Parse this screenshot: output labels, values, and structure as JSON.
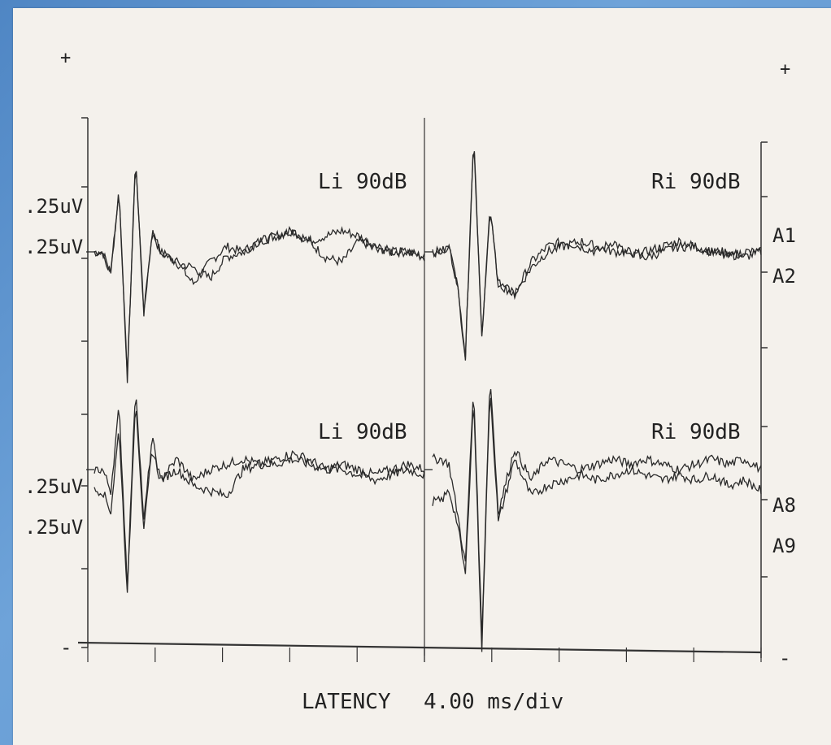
{
  "chart_data": {
    "type": "line",
    "xlabel": "LATENCY",
    "x_scale": "4.00 ms/div",
    "x_divisions_per_panel": 5,
    "left_scale_labels": [
      ".25uV",
      ".25uV",
      ".25uV",
      ".25uV"
    ],
    "right_channel_labels": [
      "A1",
      "A2",
      "A8",
      "A9"
    ],
    "plus_marks": [
      "+",
      "+"
    ],
    "minus_marks": [
      "-",
      "-"
    ],
    "panels": [
      {
        "label": "Li 90dB",
        "position": "top-left",
        "x": [
          0,
          0.5,
          1,
          1.5,
          2,
          2.5,
          3,
          3.5,
          4,
          5,
          6,
          7,
          8,
          9,
          10,
          11,
          12,
          13,
          14,
          15,
          16,
          17,
          18,
          19,
          20
        ],
        "series": [
          {
            "name": "A1",
            "values": [
              0,
              0,
              -0.2,
              0.6,
              -1.2,
              0.9,
              -0.6,
              0.2,
              0,
              -0.1,
              -0.3,
              -0.1,
              0.05,
              0,
              0.1,
              0.15,
              0.2,
              0.1,
              -0.05,
              -0.1,
              0.1,
              0.05,
              0,
              0,
              -0.05
            ]
          },
          {
            "name": "A2",
            "values": [
              0,
              0,
              -0.2,
              0.6,
              -1.2,
              0.9,
              -0.6,
              0.2,
              0,
              -0.1,
              -0.15,
              -0.25,
              -0.05,
              0,
              0.1,
              0.15,
              0.2,
              0.1,
              0.15,
              0.2,
              0.15,
              0.05,
              0,
              0,
              -0.05
            ]
          }
        ]
      },
      {
        "label": "Ri 90dB",
        "position": "top-right",
        "x": [
          0,
          0.5,
          1,
          1.5,
          2,
          2.5,
          3,
          3.5,
          4,
          5,
          6,
          7,
          8,
          9,
          10,
          11,
          12,
          13,
          14,
          15,
          16,
          17,
          18,
          19,
          20
        ],
        "series": [
          {
            "name": "A1",
            "values": [
              0,
              0,
              0.05,
              -0.3,
              -1.0,
              1.1,
              -0.8,
              0.4,
              -0.3,
              -0.4,
              -0.1,
              0.05,
              0.1,
              0.05,
              0,
              0.1,
              -0.05,
              0,
              0.05,
              0.1,
              0.05,
              0,
              0,
              -0.05,
              0
            ]
          },
          {
            "name": "A2",
            "values": [
              0,
              0,
              0.05,
              -0.3,
              -1.0,
              1.1,
              -0.8,
              0.4,
              -0.3,
              -0.4,
              -0.15,
              0,
              0.05,
              0.1,
              0.05,
              0,
              0,
              -0.05,
              0,
              0.05,
              0.05,
              0,
              -0.05,
              0,
              0
            ]
          }
        ]
      },
      {
        "label": "Li 90dB",
        "position": "bottom-left",
        "x": [
          0,
          0.5,
          1,
          1.5,
          2,
          2.5,
          3,
          3.5,
          4,
          5,
          6,
          7,
          8,
          9,
          10,
          11,
          12,
          13,
          14,
          15,
          16,
          17,
          18,
          19,
          20
        ],
        "series": [
          {
            "name": "A8",
            "values": [
              0,
              0,
              -0.2,
              0.6,
              -1.1,
              0.8,
              -0.5,
              0.3,
              -0.1,
              0.1,
              -0.1,
              0,
              0.05,
              0.1,
              0.05,
              0.1,
              0.15,
              0.1,
              0,
              0.05,
              0,
              -0.05,
              0,
              0.05,
              0
            ]
          },
          {
            "name": "A9",
            "values": [
              -0.2,
              -0.2,
              -0.4,
              0.4,
              -1.2,
              0.7,
              -0.6,
              0.2,
              -0.1,
              0,
              -0.15,
              -0.2,
              -0.25,
              0,
              0.05,
              0.05,
              0.1,
              0.05,
              0,
              0,
              -0.05,
              -0.1,
              -0.05,
              0,
              -0.05
            ]
          }
        ]
      },
      {
        "label": "Ri 90dB",
        "position": "bottom-right",
        "x": [
          0,
          0.5,
          1,
          1.5,
          2,
          2.5,
          3,
          3.5,
          4,
          5,
          6,
          7,
          8,
          9,
          10,
          11,
          12,
          13,
          14,
          15,
          16,
          17,
          18,
          19,
          20
        ],
        "series": [
          {
            "name": "A8",
            "values": [
              0.1,
              0.1,
              0.05,
              -0.4,
              -0.9,
              0.8,
              -1.6,
              0.9,
              -0.4,
              0.2,
              -0.1,
              0.1,
              0.05,
              0,
              0.05,
              0.1,
              0.05,
              0.1,
              0.05,
              0,
              0.05,
              0.1,
              0.05,
              0.1,
              0
            ]
          },
          {
            "name": "A9",
            "values": [
              -0.3,
              -0.3,
              -0.2,
              -0.5,
              -1.0,
              0.7,
              -1.7,
              0.8,
              -0.5,
              0.1,
              -0.25,
              -0.15,
              -0.1,
              -0.05,
              -0.1,
              -0.05,
              0,
              -0.05,
              -0.1,
              -0.05,
              -0.1,
              -0.05,
              -0.15,
              -0.1,
              -0.2
            ]
          }
        ]
      }
    ],
    "grid": false,
    "colors": {
      "trace": "#2a2a2a",
      "axis": "#333333",
      "paper": "#f4f1ec",
      "frame": "#5a8fc8"
    }
  }
}
